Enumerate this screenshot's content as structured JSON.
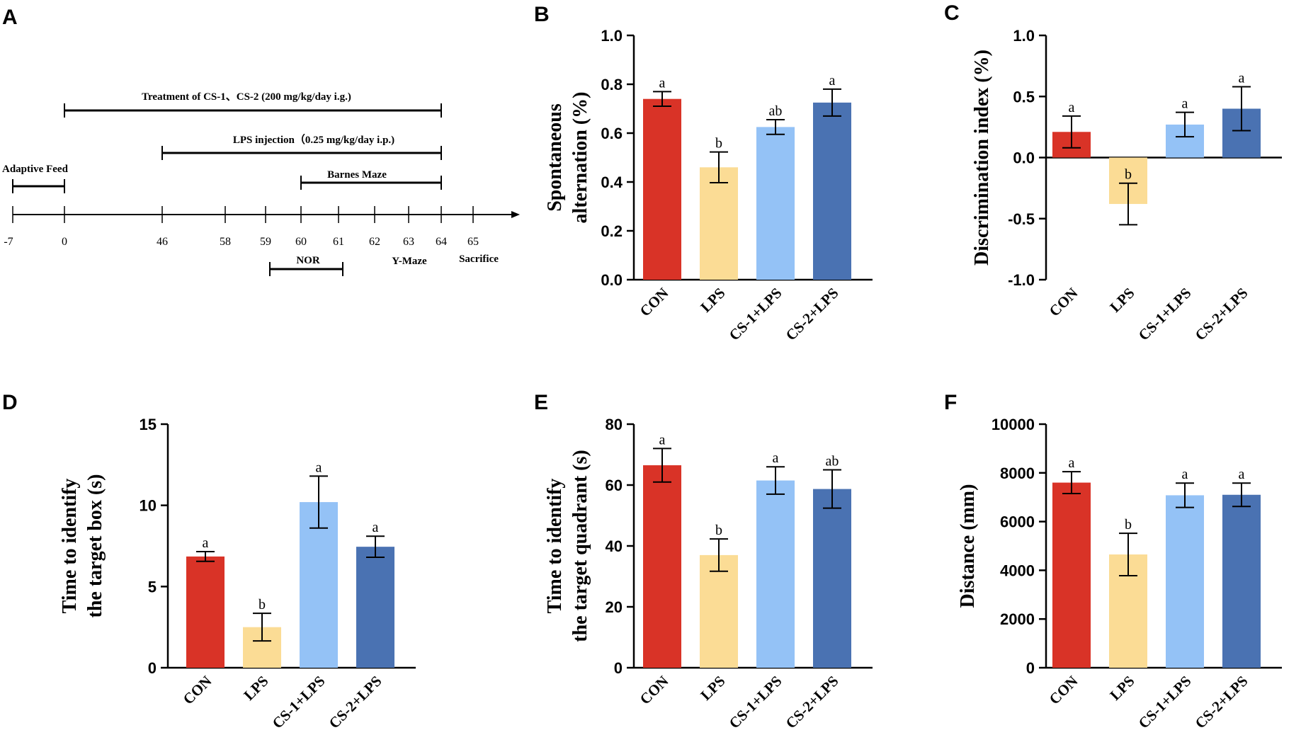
{
  "panels": [
    "A",
    "B",
    "C",
    "D",
    "E",
    "F"
  ],
  "colors": {
    "CON": "#d93327",
    "LPS": "#fbdc95",
    "CS-1+LPS": "#94c2f6",
    "CS-2+LPS": "#4a72b2",
    "axis": "#000000"
  },
  "timeline": {
    "ticks": [
      "-7",
      "0",
      "46",
      "58",
      "59",
      "60",
      "61",
      "62",
      "63",
      "64",
      "65"
    ],
    "phases": [
      {
        "label": "Treatment of  CS-1、CS-2 (200 mg/kg/day i.g.)",
        "from": "0",
        "to": "64"
      },
      {
        "label": "LPS injection（0.25 mg/kg/day i.p.)",
        "from": "46",
        "to": "64"
      },
      {
        "label": "Adaptive Feed",
        "from": "-7",
        "to": "0"
      },
      {
        "label": "Barnes Maze",
        "from": "60",
        "to": "64"
      },
      {
        "label": "NOR",
        "from": "59",
        "to": "61"
      }
    ],
    "events": [
      "Y-Maze",
      "Sacrifice"
    ]
  },
  "chart_data": [
    {
      "panel": "B",
      "type": "bar",
      "categories": [
        "CON",
        "LPS",
        "CS-1+LPS",
        "CS-2+LPS"
      ],
      "values": [
        0.74,
        0.46,
        0.625,
        0.725
      ],
      "errors": [
        0.03,
        0.063,
        0.03,
        0.055
      ],
      "significance": [
        "a",
        "b",
        "ab",
        "a"
      ],
      "ylabel": "Spontaneous alternation (%)",
      "ylabel_lines": [
        "Spontaneous",
        "alternation (%)"
      ],
      "ylim": [
        0,
        1.0
      ],
      "yticks": [
        "0.0",
        "0.2",
        "0.4",
        "0.6",
        "0.8",
        "1.0"
      ]
    },
    {
      "panel": "C",
      "type": "bar",
      "categories": [
        "CON",
        "LPS",
        "CS-1+LPS",
        "CS-2+LPS"
      ],
      "values": [
        0.21,
        -0.38,
        0.27,
        0.4
      ],
      "errors": [
        0.13,
        0.17,
        0.1,
        0.18
      ],
      "significance": [
        "a",
        "b",
        "a",
        "a"
      ],
      "ylabel": "Discrimination index (%)",
      "ylabel_lines": [
        "Discrimination index (%)"
      ],
      "ylim": [
        -1.0,
        1.0
      ],
      "yticks": [
        "-1.0",
        "-0.5",
        "0.0",
        "0.5",
        "1.0"
      ]
    },
    {
      "panel": "D",
      "type": "bar",
      "categories": [
        "CON",
        "LPS",
        "CS-1+LPS",
        "CS-2+LPS"
      ],
      "values": [
        6.85,
        2.5,
        10.2,
        7.45
      ],
      "errors": [
        0.3,
        0.85,
        1.6,
        0.65
      ],
      "significance": [
        "a",
        "b",
        "a",
        "a"
      ],
      "ylabel": "Time to identify the target box (s)",
      "ylabel_lines": [
        "Time to identify",
        "the target box (s)"
      ],
      "ylim": [
        0,
        15
      ],
      "yticks": [
        "0",
        "5",
        "10",
        "15"
      ]
    },
    {
      "panel": "E",
      "type": "bar",
      "categories": [
        "CON",
        "LPS",
        "CS-1+LPS",
        "CS-2+LPS"
      ],
      "values": [
        66.5,
        37,
        61.5,
        58.7
      ],
      "errors": [
        5.5,
        5.3,
        4.5,
        6.3
      ],
      "significance": [
        "a",
        "b",
        "a",
        "ab"
      ],
      "ylabel": "Time to identify the target quadrant (s)",
      "ylabel_lines": [
        "Time to identify",
        "the target quadrant (s)"
      ],
      "ylim": [
        0,
        80
      ],
      "yticks": [
        "0",
        "20",
        "40",
        "60",
        "80"
      ]
    },
    {
      "panel": "F",
      "type": "bar",
      "categories": [
        "CON",
        "LPS",
        "CS-1+LPS",
        "CS-2+LPS"
      ],
      "values": [
        7600,
        4650,
        7080,
        7100
      ],
      "errors": [
        450,
        870,
        500,
        480
      ],
      "significance": [
        "a",
        "b",
        "a",
        "a"
      ],
      "ylabel": "Distance (mm)",
      "ylabel_lines": [
        "Distance (mm)"
      ],
      "ylim": [
        0,
        10000
      ],
      "yticks": [
        "0",
        "2000",
        "4000",
        "6000",
        "8000",
        "10000"
      ]
    }
  ]
}
